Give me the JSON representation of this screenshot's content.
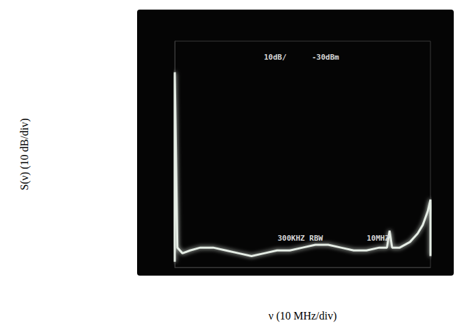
{
  "chart_data": {
    "type": "line",
    "xlabel": "ν (10 MHz/div)",
    "ylabel": "S(ν) (10 dB/div)",
    "annotations": [
      "10dB/",
      "-30dBm",
      "300KHZ RBW",
      "10MHZ"
    ],
    "x": [
      0,
      0,
      1,
      3,
      6,
      10,
      15,
      20,
      25,
      30,
      35,
      40,
      45,
      50,
      55,
      60,
      65,
      70,
      75,
      80,
      83,
      84,
      85,
      88,
      92,
      95,
      97,
      99,
      100,
      100
    ],
    "values": [
      -108,
      -41,
      -103,
      -105,
      -104,
      -103,
      -103,
      -104,
      -105,
      -106,
      -105,
      -104,
      -104,
      -103,
      -102,
      -102,
      -103,
      -104,
      -104,
      -103,
      -103,
      -97,
      -103,
      -103,
      -101,
      -98,
      -95,
      -90,
      -86,
      -106
    ],
    "color": "#e6eee6",
    "xlim": [
      0,
      100
    ],
    "ylim": [
      -110,
      -30
    ],
    "grid": false,
    "tick_labels": false
  }
}
